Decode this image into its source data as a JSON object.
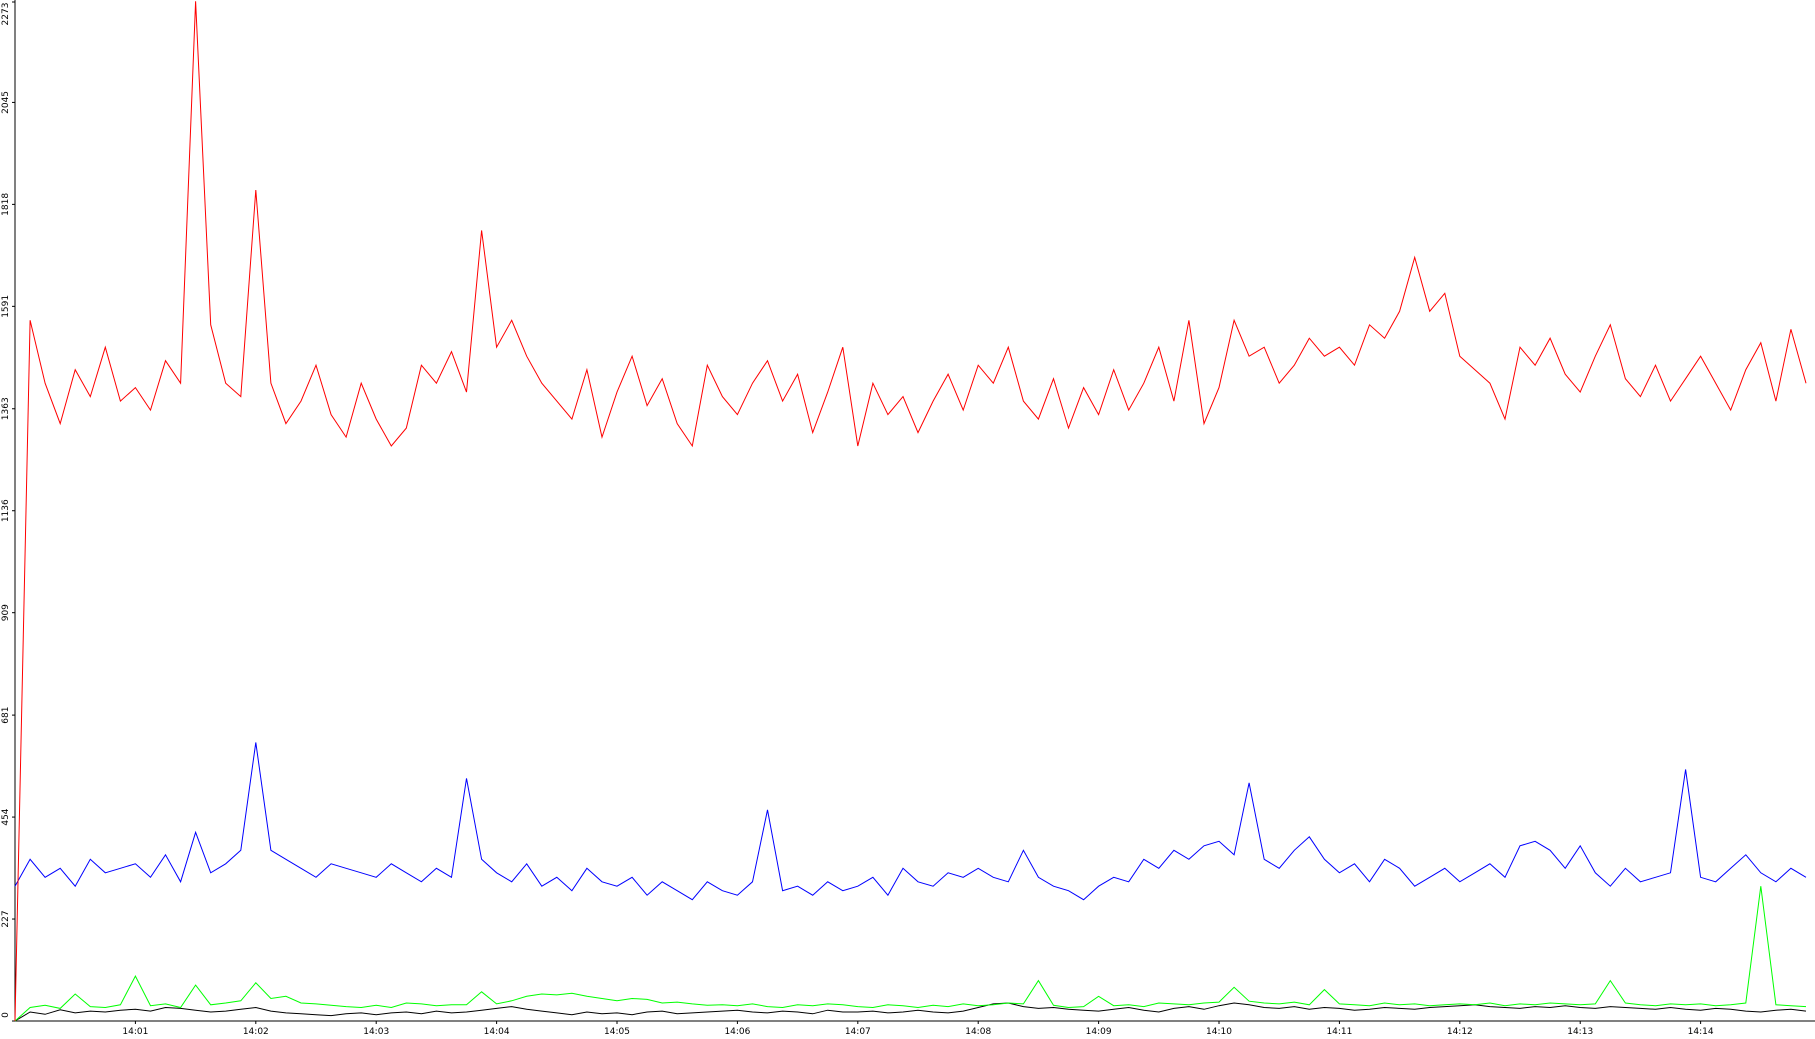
{
  "chart_data": {
    "type": "line",
    "x": [
      0,
      0.125,
      0.25,
      0.375,
      0.5,
      0.625,
      0.75,
      0.875,
      1,
      1.125,
      1.25,
      1.375,
      1.5,
      1.625,
      1.75,
      1.875,
      2,
      2.125,
      2.25,
      2.375,
      2.5,
      2.625,
      2.75,
      2.875,
      3,
      3.125,
      3.25,
      3.375,
      3.5,
      3.625,
      3.75,
      3.875,
      4,
      4.125,
      4.25,
      4.375,
      4.5,
      4.625,
      4.75,
      4.875,
      5,
      5.125,
      5.25,
      5.375,
      5.5,
      5.625,
      5.75,
      5.875,
      6,
      6.125,
      6.25,
      6.375,
      6.5,
      6.625,
      6.75,
      6.875,
      7,
      7.125,
      7.25,
      7.375,
      7.5,
      7.625,
      7.75,
      7.875,
      8,
      8.125,
      8.25,
      8.375,
      8.5,
      8.625,
      8.75,
      8.875,
      9,
      9.125,
      9.25,
      9.375,
      9.5,
      9.625,
      9.75,
      9.875,
      10,
      10.125,
      10.25,
      10.375,
      10.5,
      10.625,
      10.75,
      10.875,
      11,
      11.125,
      11.25,
      11.375,
      11.5,
      11.625,
      11.75,
      11.875,
      12,
      12.125,
      12.25,
      12.375,
      12.5,
      12.625,
      12.75,
      12.875,
      13,
      13.125,
      13.25,
      13.375,
      13.5,
      13.625,
      13.75,
      13.875,
      14,
      14.125,
      14.25,
      14.375,
      14.5,
      14.625,
      14.75,
      14.875
    ],
    "series": [
      {
        "color": "#ff0000",
        "values": [
          0,
          1560,
          1420,
          1330,
          1450,
          1390,
          1500,
          1380,
          1410,
          1360,
          1470,
          1420,
          2270,
          1550,
          1420,
          1390,
          1850,
          1420,
          1330,
          1380,
          1460,
          1350,
          1300,
          1420,
          1340,
          1280,
          1320,
          1460,
          1420,
          1490,
          1400,
          1760,
          1500,
          1560,
          1480,
          1420,
          1380,
          1340,
          1450,
          1300,
          1400,
          1480,
          1370,
          1430,
          1330,
          1280,
          1460,
          1390,
          1350,
          1420,
          1470,
          1380,
          1440,
          1310,
          1400,
          1500,
          1280,
          1420,
          1350,
          1390,
          1310,
          1380,
          1440,
          1360,
          1460,
          1420,
          1500,
          1380,
          1340,
          1430,
          1320,
          1410,
          1350,
          1450,
          1360,
          1420,
          1500,
          1380,
          1560,
          1330,
          1410,
          1560,
          1480,
          1500,
          1420,
          1460,
          1520,
          1480,
          1500,
          1460,
          1550,
          1520,
          1580,
          1700,
          1580,
          1620,
          1480,
          1450,
          1420,
          1340,
          1500,
          1460,
          1520,
          1440,
          1400,
          1480,
          1550,
          1430,
          1390,
          1460,
          1380,
          1430,
          1480,
          1420,
          1360,
          1450,
          1510,
          1380,
          1540,
          1420
        ]
      },
      {
        "color": "#0000ff",
        "values": [
          300,
          360,
          320,
          340,
          300,
          360,
          330,
          340,
          350,
          320,
          370,
          310,
          420,
          330,
          350,
          380,
          620,
          380,
          360,
          340,
          320,
          350,
          340,
          330,
          320,
          350,
          330,
          310,
          340,
          320,
          540,
          360,
          330,
          310,
          350,
          300,
          320,
          290,
          340,
          310,
          300,
          320,
          280,
          310,
          290,
          270,
          310,
          290,
          280,
          310,
          470,
          290,
          300,
          280,
          310,
          290,
          300,
          320,
          280,
          340,
          310,
          300,
          330,
          320,
          340,
          320,
          310,
          380,
          320,
          300,
          290,
          270,
          300,
          320,
          310,
          360,
          340,
          380,
          360,
          390,
          400,
          370,
          530,
          360,
          340,
          380,
          410,
          360,
          330,
          350,
          310,
          360,
          340,
          300,
          320,
          340,
          310,
          330,
          350,
          320,
          390,
          400,
          380,
          340,
          390,
          330,
          300,
          340,
          310,
          320,
          330,
          560,
          320,
          310,
          340,
          370,
          330,
          310,
          340,
          320
        ]
      },
      {
        "color": "#00ff00",
        "values": [
          0,
          30,
          35,
          28,
          60,
          32,
          30,
          36,
          100,
          34,
          38,
          30,
          80,
          36,
          40,
          45,
          85,
          50,
          55,
          40,
          38,
          35,
          32,
          30,
          35,
          30,
          40,
          38,
          34,
          36,
          36,
          65,
          38,
          45,
          55,
          60,
          58,
          62,
          55,
          50,
          45,
          50,
          48,
          40,
          42,
          38,
          35,
          36,
          34,
          38,
          32,
          30,
          36,
          34,
          38,
          36,
          32,
          30,
          36,
          34,
          30,
          35,
          32,
          38,
          34,
          36,
          40,
          38,
          90,
          35,
          30,
          32,
          55,
          34,
          36,
          32,
          40,
          38,
          36,
          40,
          42,
          75,
          44,
          40,
          38,
          42,
          36,
          70,
          38,
          36,
          34,
          40,
          36,
          38,
          34,
          36,
          38,
          36,
          40,
          34,
          38,
          36,
          40,
          38,
          36,
          38,
          90,
          40,
          36,
          34,
          38,
          36,
          38,
          34,
          36,
          40,
          300,
          36,
          34,
          32
        ]
      },
      {
        "color": "#000000",
        "values": [
          0,
          20,
          15,
          25,
          18,
          22,
          20,
          24,
          26,
          22,
          30,
          28,
          24,
          20,
          22,
          26,
          30,
          22,
          18,
          16,
          14,
          12,
          16,
          18,
          14,
          18,
          20,
          16,
          22,
          18,
          20,
          24,
          28,
          32,
          26,
          22,
          18,
          14,
          20,
          16,
          18,
          14,
          20,
          22,
          16,
          18,
          20,
          22,
          24,
          20,
          18,
          22,
          20,
          16,
          24,
          20,
          20,
          22,
          18,
          20,
          24,
          20,
          18,
          22,
          30,
          38,
          40,
          32,
          28,
          30,
          26,
          24,
          22,
          26,
          30,
          24,
          20,
          28,
          32,
          26,
          34,
          40,
          36,
          30,
          28,
          32,
          26,
          30,
          28,
          24,
          26,
          30,
          28,
          26,
          30,
          32,
          34,
          36,
          32,
          30,
          28,
          32,
          30,
          34,
          30,
          28,
          32,
          30,
          28,
          26,
          30,
          26,
          24,
          28,
          26,
          22,
          20,
          24,
          26,
          22
        ]
      }
    ],
    "xlim": [
      0,
      14.95
    ],
    "xticks": [
      {
        "value": 1,
        "label": "14:01"
      },
      {
        "value": 2,
        "label": "14:02"
      },
      {
        "value": 3,
        "label": "14:03"
      },
      {
        "value": 4,
        "label": "14:04"
      },
      {
        "value": 5,
        "label": "14:05"
      },
      {
        "value": 6,
        "label": "14:06"
      },
      {
        "value": 7,
        "label": "14:07"
      },
      {
        "value": 8,
        "label": "14:08"
      },
      {
        "value": 9,
        "label": "14:09"
      },
      {
        "value": 10,
        "label": "14:10"
      },
      {
        "value": 11,
        "label": "14:11"
      },
      {
        "value": 12,
        "label": "14:12"
      },
      {
        "value": 13,
        "label": "14:13"
      },
      {
        "value": 14,
        "label": "14:14"
      }
    ],
    "ylim": [
      0,
      2273
    ],
    "yticks": [
      0,
      227,
      454,
      681,
      909,
      1136,
      1363,
      1591,
      1818,
      2045,
      2273
    ],
    "grid": false
  }
}
